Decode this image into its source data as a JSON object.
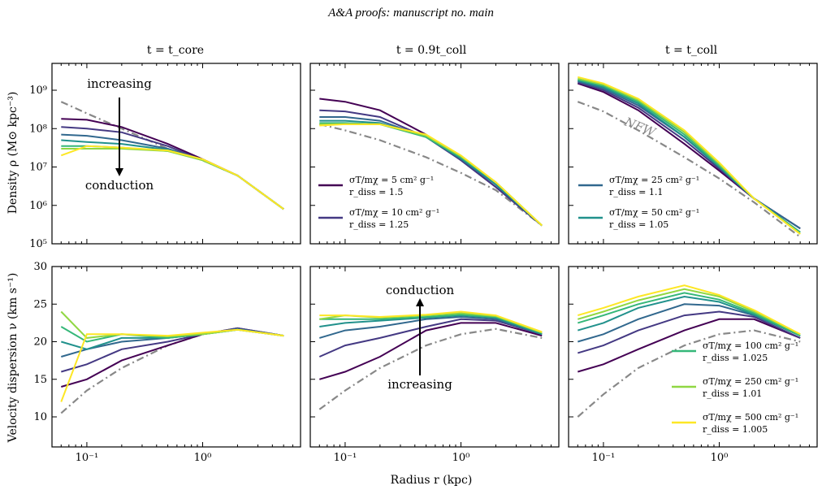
{
  "header": "A&A proofs: manuscript no. main",
  "columns": [
    "t = t_core",
    "t = 0.9t_coll",
    "t = t_coll"
  ],
  "row_labels": [
    "Density ρ (M⊙ kpc⁻³)",
    "Velocity dispersion ν (km s⁻¹)"
  ],
  "x_label": "Radius r (kpc)",
  "x_ticks": [
    "10⁻¹",
    "10⁰"
  ],
  "density_ticks": [
    "10⁹",
    "10⁸",
    "10⁷",
    "10⁶",
    "10⁵"
  ],
  "velocity_ticks": [
    "30",
    "25",
    "20",
    "15",
    "10"
  ],
  "annotations": {
    "increasing": "increasing",
    "conduction": "conduction",
    "nfw": "NFW"
  },
  "legend": [
    {
      "sigma": "σT/mχ = 5 cm² g⁻¹",
      "rdiss": "r_diss = 1.5",
      "color": "#440154"
    },
    {
      "sigma": "σT/mχ = 10 cm² g⁻¹",
      "rdiss": "r_diss = 1.25",
      "color": "#443983"
    },
    {
      "sigma": "σT/mχ = 25 cm² g⁻¹",
      "rdiss": "r_diss = 1.1",
      "color": "#31688e"
    },
    {
      "sigma": "σT/mχ = 50 cm² g⁻¹",
      "rdiss": "r_diss = 1.05",
      "color": "#21918c"
    },
    {
      "sigma": "σT/mχ = 100 cm² g⁻¹",
      "rdiss": "r_diss = 1.025",
      "color": "#35b779"
    },
    {
      "sigma": "σT/mχ = 250 cm² g⁻¹",
      "rdiss": "r_diss = 1.01",
      "color": "#90d743"
    },
    {
      "sigma": "σT/mχ = 500 cm² g⁻¹",
      "rdiss": "r_diss = 1.005",
      "color": "#fde725"
    }
  ],
  "chart_data": {
    "type": "line",
    "x_scale": "log",
    "x_range": [
      0.05,
      7
    ],
    "x": [
      0.06,
      0.1,
      0.2,
      0.5,
      1,
      2,
      5
    ],
    "density_panels": [
      {
        "title": "t = t_core",
        "y_scale": "log",
        "y_range": [
          100000.0,
          5000000000.0
        ],
        "nfw": [
          500000000.0,
          250000000.0,
          100000000.0,
          30000000.0,
          15000000.0,
          6000000.0,
          800000.0
        ],
        "series": [
          {
            "name": "σT/mχ = 5",
            "values": [
              180000000.0,
              170000000.0,
              110000000.0,
              40000000.0,
              16000000.0,
              6000000.0,
              800000.0
            ]
          },
          {
            "name": "σT/mχ = 10",
            "values": [
              110000000.0,
              100000000.0,
              80000000.0,
              35000000.0,
              15000000.0,
              6000000.0,
              800000.0
            ]
          },
          {
            "name": "σT/mχ = 25",
            "values": [
              70000000.0,
              65000000.0,
              50000000.0,
              30000000.0,
              15000000.0,
              6000000.0,
              800000.0
            ]
          },
          {
            "name": "σT/mχ = 50",
            "values": [
              50000000.0,
              45000000.0,
              40000000.0,
              28000000.0,
              15000000.0,
              6000000.0,
              800000.0
            ]
          },
          {
            "name": "σT/mχ = 100",
            "values": [
              35000000.0,
              35000000.0,
              32000000.0,
              26000000.0,
              15000000.0,
              6000000.0,
              800000.0
            ]
          },
          {
            "name": "σT/mχ = 250",
            "values": [
              30000000.0,
              30000000.0,
              30000000.0,
              26000000.0,
              15000000.0,
              6000000.0,
              800000.0
            ]
          },
          {
            "name": "σT/mχ = 500",
            "values": [
              20000000.0,
              35000000.0,
              32000000.0,
              27000000.0,
              16000000.0,
              6000000.0,
              800000.0
            ]
          }
        ]
      },
      {
        "title": "t = 0.9t_coll",
        "y_scale": "log",
        "y_range": [
          100000.0,
          5000000000.0
        ],
        "nfw": [
          130000000.0,
          90000000.0,
          50000000.0,
          18000000.0,
          7000000.0,
          2500000.0,
          300000.0
        ],
        "series": [
          {
            "name": "σT/mχ = 5",
            "values": [
              600000000.0,
              500000000.0,
              300000000.0,
              70000000.0,
              15000000.0,
              3000000.0,
              300000.0
            ]
          },
          {
            "name": "σT/mχ = 10",
            "values": [
              300000000.0,
              280000000.0,
              200000000.0,
              60000000.0,
              15000000.0,
              3000000.0,
              300000.0
            ]
          },
          {
            "name": "σT/mχ = 25",
            "values": [
              200000000.0,
              200000000.0,
              160000000.0,
              60000000.0,
              16000000.0,
              3500000.0,
              300000.0
            ]
          },
          {
            "name": "σT/mχ = 50",
            "values": [
              160000000.0,
              160000000.0,
              140000000.0,
              60000000.0,
              17000000.0,
              3500000.0,
              300000.0
            ]
          },
          {
            "name": "σT/mχ = 100",
            "values": [
              140000000.0,
              140000000.0,
              130000000.0,
              60000000.0,
              18000000.0,
              4000000.0,
              300000.0
            ]
          },
          {
            "name": "σT/mχ = 250",
            "values": [
              130000000.0,
              130000000.0,
              130000000.0,
              65000000.0,
              19000000.0,
              4000000.0,
              300000.0
            ]
          },
          {
            "name": "σT/mχ = 500",
            "values": [
              120000000.0,
              130000000.0,
              130000000.0,
              70000000.0,
              20000000.0,
              4000000.0,
              300000.0
            ]
          }
        ]
      },
      {
        "title": "t = t_coll",
        "y_scale": "log",
        "y_range": [
          100000.0,
          5000000000.0
        ],
        "nfw": [
          500000000.0,
          280000000.0,
          90000000.0,
          18000000.0,
          5000000.0,
          1200000.0,
          150000.0
        ],
        "series": [
          {
            "name": "σT/mχ = 5",
            "values": [
              1500000000.0,
              900000000.0,
              300000000.0,
              40000000.0,
              8000000.0,
              1500000.0,
              250000.0
            ]
          },
          {
            "name": "σT/mχ = 10",
            "values": [
              1600000000.0,
              1000000000.0,
              350000000.0,
              50000000.0,
              9000000.0,
              1500000.0,
              250000.0
            ]
          },
          {
            "name": "σT/mχ = 25",
            "values": [
              1700000000.0,
              1100000000.0,
              400000000.0,
              60000000.0,
              10000000.0,
              1500000.0,
              250000.0
            ]
          },
          {
            "name": "σT/mχ = 50",
            "values": [
              1800000000.0,
              1200000000.0,
              450000000.0,
              60000000.0,
              10000000.0,
              1500000.0,
              200000.0
            ]
          },
          {
            "name": "σT/mχ = 100",
            "values": [
              1900000000.0,
              1300000000.0,
              500000000.0,
              70000000.0,
              11000000.0,
              1500000.0,
              200000.0
            ]
          },
          {
            "name": "σT/mχ = 250",
            "values": [
              2000000000.0,
              1400000000.0,
              550000000.0,
              80000000.0,
              12000000.0,
              1500000.0,
              180000.0
            ]
          },
          {
            "name": "σT/mχ = 500",
            "values": [
              2200000000.0,
              1500000000.0,
              600000000.0,
              90000000.0,
              13000000.0,
              1500000.0,
              180000.0
            ]
          }
        ]
      }
    ],
    "velocity_panels": [
      {
        "title": "t = t_core",
        "y_range": [
          6,
          30
        ],
        "nfw": [
          10.5,
          13.5,
          16.5,
          19.5,
          21,
          21.7,
          20.8
        ],
        "series": [
          {
            "name": "σT/mχ = 5",
            "values": [
              14,
              15,
              17.5,
              19.5,
              21,
              21.8,
              20.8
            ]
          },
          {
            "name": "σT/mχ = 10",
            "values": [
              16,
              17,
              19,
              20,
              21,
              21.8,
              20.8
            ]
          },
          {
            "name": "σT/mχ = 25",
            "values": [
              18,
              19,
              20,
              20.5,
              21,
              21.7,
              20.8
            ]
          },
          {
            "name": "σT/mχ = 50",
            "values": [
              20,
              19,
              20.5,
              20.5,
              21,
              21.6,
              20.8
            ]
          },
          {
            "name": "σT/mχ = 100",
            "values": [
              22,
              20,
              21,
              20.5,
              21,
              21.6,
              20.8
            ]
          },
          {
            "name": "σT/mχ = 250",
            "values": [
              24,
              20.5,
              21,
              20.7,
              21,
              21.6,
              20.8
            ]
          },
          {
            "name": "σT/mχ = 500",
            "values": [
              12,
              21,
              21,
              20.8,
              21.2,
              21.6,
              20.8
            ]
          }
        ]
      },
      {
        "title": "t = 0.9t_coll",
        "y_range": [
          6,
          30
        ],
        "nfw": [
          11,
          13.5,
          16.5,
          19.5,
          21,
          21.7,
          20.5
        ],
        "series": [
          {
            "name": "σT/mχ = 5",
            "values": [
              15,
              16,
              18,
              21.5,
              22.5,
              22.5,
              20.8
            ]
          },
          {
            "name": "σT/mχ = 10",
            "values": [
              18,
              19.5,
              20.5,
              22,
              23,
              22.8,
              21
            ]
          },
          {
            "name": "σT/mχ = 25",
            "values": [
              20.5,
              21.5,
              22,
              23,
              23.3,
              23,
              21
            ]
          },
          {
            "name": "σT/mχ = 50",
            "values": [
              22,
              22.5,
              22.8,
              23.2,
              23.5,
              23.2,
              21
            ]
          },
          {
            "name": "σT/mχ = 100",
            "values": [
              23,
              23,
              23,
              23.3,
              23.6,
              23.3,
              21.2
            ]
          },
          {
            "name": "σT/mχ = 250",
            "values": [
              23,
              23.5,
              23.2,
              23.5,
              23.8,
              23.4,
              21.2
            ]
          },
          {
            "name": "σT/mχ = 500",
            "values": [
              23.5,
              23.5,
              23.3,
              23.6,
              24,
              23.5,
              21.3
            ]
          }
        ]
      },
      {
        "title": "t = t_coll",
        "y_range": [
          6,
          30
        ],
        "nfw": [
          10,
          13,
          16.5,
          19.5,
          21,
          21.5,
          20
        ],
        "series": [
          {
            "name": "σT/mχ = 5",
            "values": [
              16,
              17,
              19,
              21.5,
              23,
              23,
              20.5
            ]
          },
          {
            "name": "σT/mχ = 10",
            "values": [
              18.5,
              19.5,
              21.5,
              23.5,
              24,
              23.3,
              20.5
            ]
          },
          {
            "name": "σT/mχ = 25",
            "values": [
              20,
              21,
              23,
              25,
              24.8,
              23.5,
              20.8
            ]
          },
          {
            "name": "σT/mχ = 50",
            "values": [
              21.5,
              22.5,
              24.5,
              26,
              25.3,
              23.6,
              20.8
            ]
          },
          {
            "name": "σT/mχ = 100",
            "values": [
              22.5,
              23.5,
              25,
              26.5,
              25.6,
              23.8,
              20.8
            ]
          },
          {
            "name": "σT/mχ = 250",
            "values": [
              23,
              24,
              25.5,
              27,
              26,
              24,
              21
            ]
          },
          {
            "name": "σT/mχ = 500",
            "values": [
              23.5,
              24.5,
              26,
              27.5,
              26.2,
              24.2,
              21
            ]
          }
        ]
      }
    ]
  }
}
